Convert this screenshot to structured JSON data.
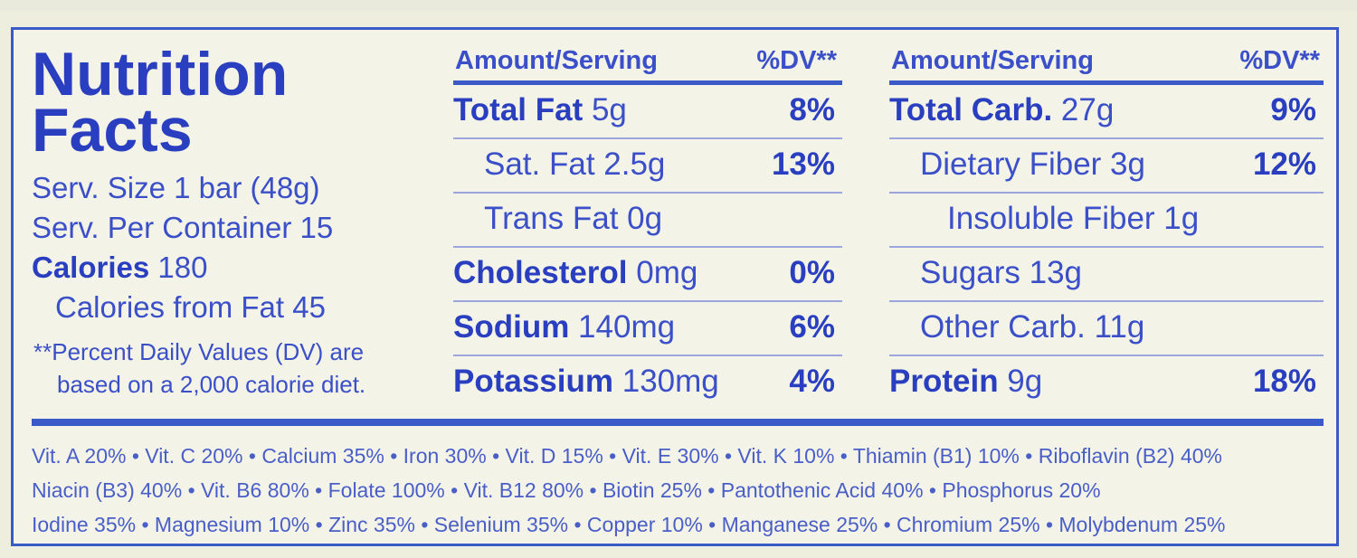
{
  "title_line1": "Nutrition",
  "title_line2": "Facts",
  "serving_size": "Serv. Size 1 bar (48g)",
  "servings": "Serv. Per Container 15",
  "calories_label": "Calories",
  "calories_value": " 180",
  "calories_fat": "Calories from Fat 45",
  "footnote_1": "**Percent Daily Values (DV) are",
  "footnote_2": "based on a 2,000 calorie diet.",
  "left_header": {
    "amount": "Amount/Serving",
    "dv": "%DV**"
  },
  "right_header": {
    "amount": "Amount/Serving",
    "dv": "%DV**"
  },
  "left_rows": [
    {
      "name": "Total Fat",
      "amount": " 5g",
      "dv": "8%"
    },
    {
      "name": "Sat. Fat 2.5g",
      "amount": "",
      "dv": "13%"
    },
    {
      "name": "Trans Fat 0g",
      "amount": "",
      "dv": ""
    },
    {
      "name": "Cholesterol",
      "amount": " 0mg",
      "dv": "0%"
    },
    {
      "name": "Sodium",
      "amount": " 140mg",
      "dv": "6%"
    },
    {
      "name": "Potassium",
      "amount": " 130mg",
      "dv": "4%"
    }
  ],
  "right_rows": [
    {
      "name": "Total Carb.",
      "amount": " 27g",
      "dv": "9%"
    },
    {
      "name": "Dietary Fiber 3g",
      "amount": "",
      "dv": "12%"
    },
    {
      "name": "Insoluble Fiber 1g",
      "amount": "",
      "dv": ""
    },
    {
      "name": "Sugars 13g",
      "amount": "",
      "dv": ""
    },
    {
      "name": "Other Carb. 11g",
      "amount": "",
      "dv": ""
    },
    {
      "name": "Protein",
      "amount": " 9g",
      "dv": "18%"
    }
  ],
  "vitamins": [
    "Vit. A 20% • Vit. C 20% • Calcium 35% • Iron 30% • Vit. D 15% • Vit. E 30% • Vit. K 10% • Thiamin (B1) 10% • Riboflavin (B2) 40%",
    "Niacin (B3) 40% • Vit. B6 80% • Folate 100% • Vit. B12 80% • Biotin 25% • Pantothenic Acid 40% • Phosphorus 20%",
    "Iodine 35% • Magnesium 10% • Zinc 35% • Selenium 35% • Copper 10% • Manganese 25% • Chromium 25% • Molybdenum 25%"
  ],
  "colors": {
    "ink": "#2a3fc0",
    "paper": "#f3f3e7"
  }
}
